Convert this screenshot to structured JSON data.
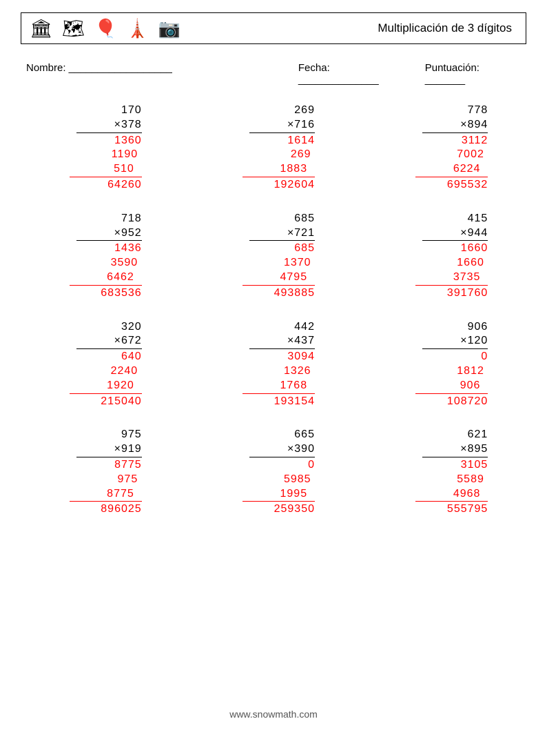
{
  "title": "Multiplicación de 3 dígitos",
  "meta": {
    "name_label": "Nombre: __________________",
    "date_label": "Fecha: ______________",
    "score_label": "Puntuación: _______"
  },
  "icons": [
    "🏛",
    "🗺",
    "🎈",
    "🗼",
    "📷"
  ],
  "footer": "www.snowmath.com",
  "style": {
    "answer_color": "#ff0000",
    "text_color": "#000000",
    "background": "#ffffff",
    "font_size_body": 16,
    "font_size_title": 17,
    "font_size_meta": 15,
    "font_size_footer": 14,
    "grid_cols": 3,
    "grid_rows": 4
  },
  "problems": [
    {
      "a": "170",
      "b": "×378",
      "p1": "1360",
      "p2": "1190 ",
      "p3": "510  ",
      "r": "64260"
    },
    {
      "a": "269",
      "b": "×716",
      "p1": "1614",
      "p2": "269 ",
      "p3": "1883  ",
      "r": "192604"
    },
    {
      "a": "778",
      "b": "×894",
      "p1": "3112",
      "p2": "7002 ",
      "p3": "6224  ",
      "r": "695532"
    },
    {
      "a": "718",
      "b": "×952",
      "p1": "1436",
      "p2": "3590 ",
      "p3": "6462  ",
      "r": "683536"
    },
    {
      "a": "685",
      "b": "×721",
      "p1": "685",
      "p2": "1370 ",
      "p3": "4795  ",
      "r": "493885"
    },
    {
      "a": "415",
      "b": "×944",
      "p1": "1660",
      "p2": "1660 ",
      "p3": "3735  ",
      "r": "391760"
    },
    {
      "a": "320",
      "b": "×672",
      "p1": "640",
      "p2": "2240 ",
      "p3": "1920  ",
      "r": "215040"
    },
    {
      "a": "442",
      "b": "×437",
      "p1": "3094",
      "p2": "1326 ",
      "p3": "1768  ",
      "r": "193154"
    },
    {
      "a": "906",
      "b": "×120",
      "p1": "0",
      "p2": "1812 ",
      "p3": "906  ",
      "r": "108720"
    },
    {
      "a": "975",
      "b": "×919",
      "p1": "8775",
      "p2": "975 ",
      "p3": "8775  ",
      "r": "896025"
    },
    {
      "a": "665",
      "b": "×390",
      "p1": "0",
      "p2": "5985 ",
      "p3": "1995  ",
      "r": "259350"
    },
    {
      "a": "621",
      "b": "×895",
      "p1": "3105",
      "p2": "5589 ",
      "p3": "4968  ",
      "r": "555795"
    }
  ]
}
